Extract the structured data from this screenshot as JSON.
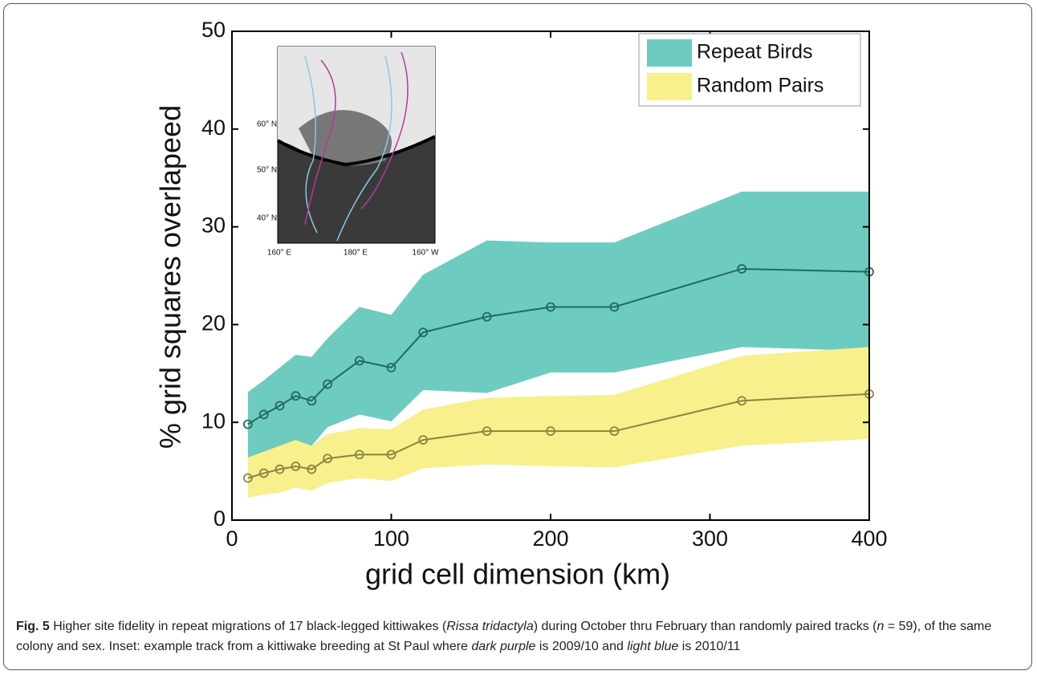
{
  "chart_data": {
    "type": "band-line",
    "xlabel": "grid cell dimension (km)",
    "ylabel": "% grid squares overlapeed",
    "x": [
      10,
      20,
      30,
      40,
      50,
      60,
      80,
      100,
      120,
      160,
      200,
      240,
      320,
      400
    ],
    "xlim": [
      0,
      400
    ],
    "xticks": [
      0,
      100,
      200,
      300,
      400
    ],
    "ylim": [
      0,
      50
    ],
    "yticks": [
      0,
      10,
      20,
      30,
      40,
      50
    ],
    "legend": "upper right",
    "series": [
      {
        "name": "Repeat Birds",
        "color": "#6ecbc0",
        "line_color": "#1f6b60",
        "values": [
          9.8,
          10.8,
          11.7,
          12.7,
          12.2,
          13.9,
          16.3,
          15.6,
          19.2,
          20.8,
          21.8,
          21.8,
          25.7,
          25.4
        ],
        "upper": [
          13.1,
          14.3,
          15.6,
          16.9,
          16.7,
          18.6,
          21.8,
          21.0,
          25.1,
          28.6,
          28.4,
          28.4,
          33.6,
          33.6
        ],
        "lower": [
          6.3,
          6.9,
          7.4,
          7.9,
          7.6,
          9.5,
          10.8,
          10.1,
          13.3,
          13.0,
          15.1,
          15.1,
          17.7,
          17.3
        ]
      },
      {
        "name": "Random Pairs",
        "color": "#f7f08c",
        "line_color": "#8a8540",
        "values": [
          4.3,
          4.8,
          5.2,
          5.5,
          5.2,
          6.3,
          6.7,
          6.7,
          8.2,
          9.1,
          9.1,
          9.1,
          12.2,
          12.9
        ],
        "upper": [
          6.4,
          7.0,
          7.6,
          8.2,
          7.6,
          8.8,
          9.4,
          9.3,
          11.3,
          12.5,
          12.7,
          12.8,
          16.8,
          17.7
        ],
        "lower": [
          2.3,
          2.6,
          2.8,
          3.3,
          3.0,
          3.8,
          4.3,
          4.0,
          5.3,
          5.7,
          5.5,
          5.4,
          7.6,
          8.3
        ]
      }
    ],
    "inset": {
      "lat_labels": [
        "60° N",
        "50° N",
        "40° N"
      ],
      "lon_labels": [
        "160° E",
        "180° E",
        "160° W"
      ]
    }
  },
  "caption": {
    "label": "Fig. 5",
    "parts": [
      " Higher site fidelity in repeat migrations of 17 black-legged kittiwakes (",
      "Rissa tridactyla",
      ") during October thru February than randomly paired tracks (",
      "n",
      " = 59), of the same colony and sex. Inset: example track from a kittiwake breeding at St Paul where ",
      "dark purple",
      " is 2009/10 and ",
      "light blue",
      " is 2010/11"
    ]
  }
}
